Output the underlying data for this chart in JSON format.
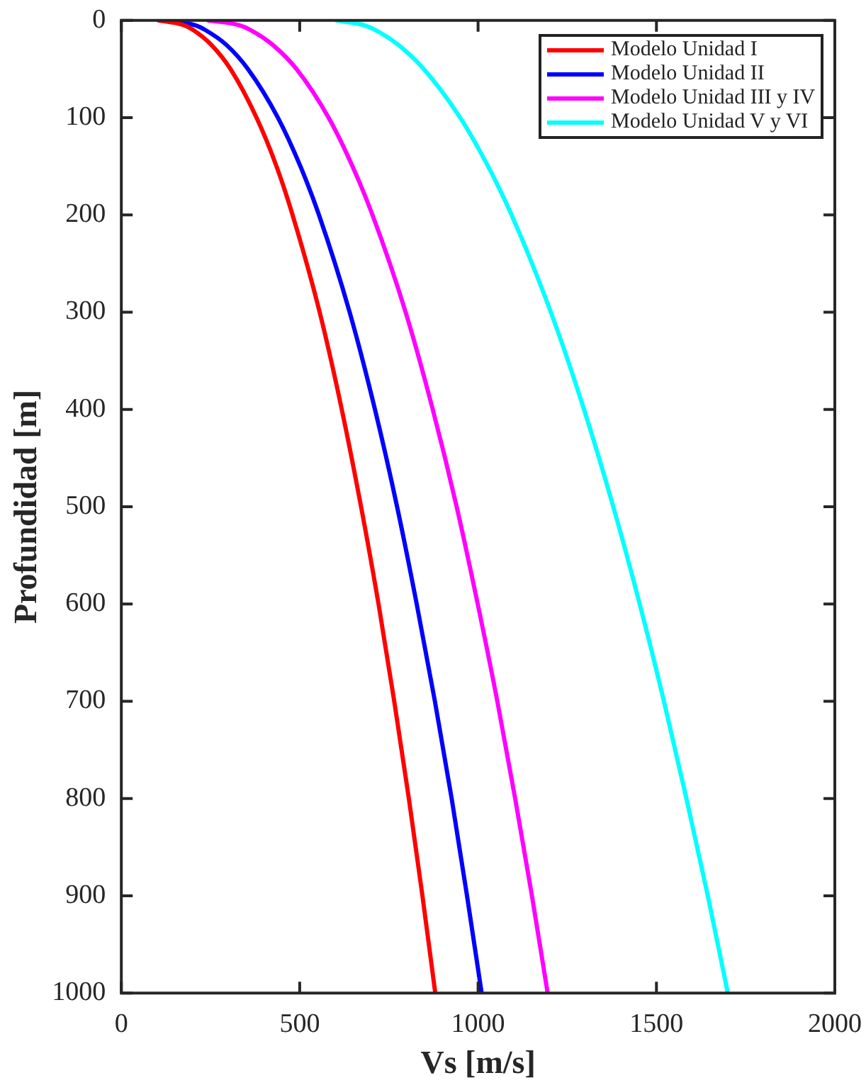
{
  "chart_data": {
    "type": "line",
    "xlabel": "Vs [m/s]",
    "ylabel": "Profundidad [m]",
    "xlim": [
      0,
      2000
    ],
    "xticks": [
      0,
      500,
      1000,
      1500,
      2000
    ],
    "ylim": [
      1000,
      0
    ],
    "yticks": [
      0,
      100,
      200,
      300,
      400,
      500,
      600,
      700,
      800,
      900,
      1000
    ],
    "grid": false,
    "legend": "top right",
    "marker": "none",
    "line_style": "solid",
    "series": [
      {
        "name": "Modelo Unidad I",
        "color": "#ff0000",
        "x": [
          104,
          176,
          202,
          252,
          306,
          379,
          435,
          480,
          556,
          618,
          672,
          721,
          765,
          806,
          844,
          880
        ],
        "values": [
          0,
          5,
          10,
          25,
          50,
          100,
          150,
          200,
          300,
          400,
          500,
          600,
          700,
          800,
          900,
          1000
        ]
      },
      {
        "name": "Modelo Unidad II",
        "color": "#0000ff",
        "x": [
          125,
          207,
          236,
          294,
          355,
          439,
          502,
          554,
          640,
          711,
          773,
          828,
          879,
          926,
          969,
          1010
        ],
        "values": [
          0,
          5,
          10,
          25,
          50,
          100,
          150,
          200,
          300,
          400,
          500,
          600,
          700,
          800,
          900,
          1000
        ]
      },
      {
        "name": "Modelo Unidad III y IV",
        "color": "#ff00ff",
        "x": [
          243,
          331,
          363,
          424,
          491,
          581,
          648,
          704,
          797,
          873,
          940,
          999,
          1054,
          1104,
          1151,
          1195
        ],
        "values": [
          0,
          5,
          10,
          25,
          50,
          100,
          150,
          200,
          300,
          400,
          500,
          600,
          700,
          800,
          900,
          1000
        ]
      },
      {
        "name": "Modelo Unidad V y VI",
        "color": "#00ffff",
        "x": [
          603,
          681,
          713,
          776,
          848,
          950,
          1028,
          1094,
          1204,
          1297,
          1379,
          1453,
          1521,
          1584,
          1644,
          1700
        ],
        "values": [
          0,
          5,
          10,
          25,
          50,
          100,
          150,
          200,
          300,
          400,
          500,
          600,
          700,
          800,
          900,
          1000
        ]
      }
    ]
  }
}
